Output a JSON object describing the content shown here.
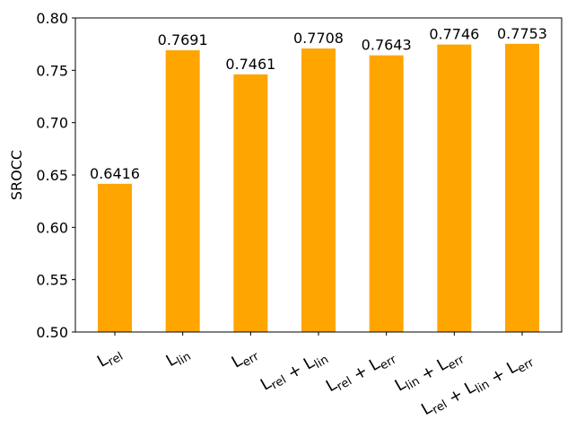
{
  "chart_data": {
    "type": "bar",
    "y_label": "SROCC",
    "categories": [
      "Lrel",
      "Llin",
      "Lerr",
      "Lrel + Llin",
      "Lrel + Lerr",
      "Llin + Lerr",
      "Lrel + Llin + Lerr"
    ],
    "values": [
      0.6416,
      0.7691,
      0.7461,
      0.7708,
      0.7643,
      0.7746,
      0.7753
    ],
    "color": "#ffa500",
    "ylim": [
      0.5,
      0.8
    ],
    "yticks": [
      {
        "value": 0.5,
        "label": "0.50"
      },
      {
        "value": 0.55,
        "label": "0.55"
      },
      {
        "value": 0.6,
        "label": "0.60"
      },
      {
        "value": 0.65,
        "label": "0.65"
      },
      {
        "value": 0.7,
        "label": "0.70"
      },
      {
        "value": 0.75,
        "label": "0.75"
      },
      {
        "value": 0.8,
        "label": "0.80"
      }
    ]
  }
}
